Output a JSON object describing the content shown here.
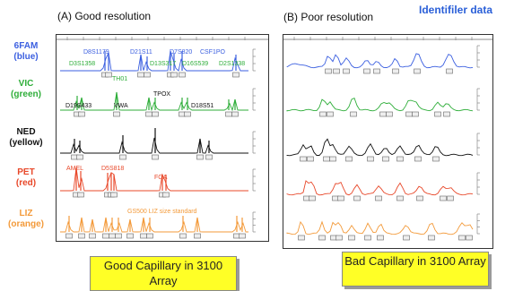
{
  "header": {
    "left_title": "(A) Good resolution",
    "right_title": "(B) Poor resolution",
    "brand": "Identifiler data"
  },
  "channels": [
    {
      "dye": "6FAM",
      "color_name": "(blue)",
      "color": "#3b5fe0",
      "loci": [
        "D8S1179",
        "D21S11",
        "D7S820",
        "CSF1PO"
      ]
    },
    {
      "dye": "VIC",
      "color_name": "(green)",
      "color": "#2fae3a",
      "loci": [
        "D3S1358",
        "TH01",
        "D13S317",
        "D16S539",
        "D2S1338"
      ]
    },
    {
      "dye": "NED",
      "color_name": "(yellow)",
      "color": "#111111",
      "loci": [
        "D19S433",
        "VWA",
        "TPOX",
        "D18S51"
      ]
    },
    {
      "dye": "PET",
      "color_name": "(red)",
      "color": "#e8482a",
      "loci": [
        "AMEL",
        "D5S818",
        "FGA"
      ]
    },
    {
      "dye": "LIZ",
      "color_name": "(orange)",
      "color": "#f39a3a",
      "loci": [
        "GS500 LIZ size standard"
      ]
    }
  ],
  "captions": {
    "good": "Good Capillary in 3100 Array",
    "bad": "Bad Capillary in 3100 Array"
  },
  "colors": {
    "caption_bg": "#ffff26",
    "brand": "#2a5fd8"
  }
}
